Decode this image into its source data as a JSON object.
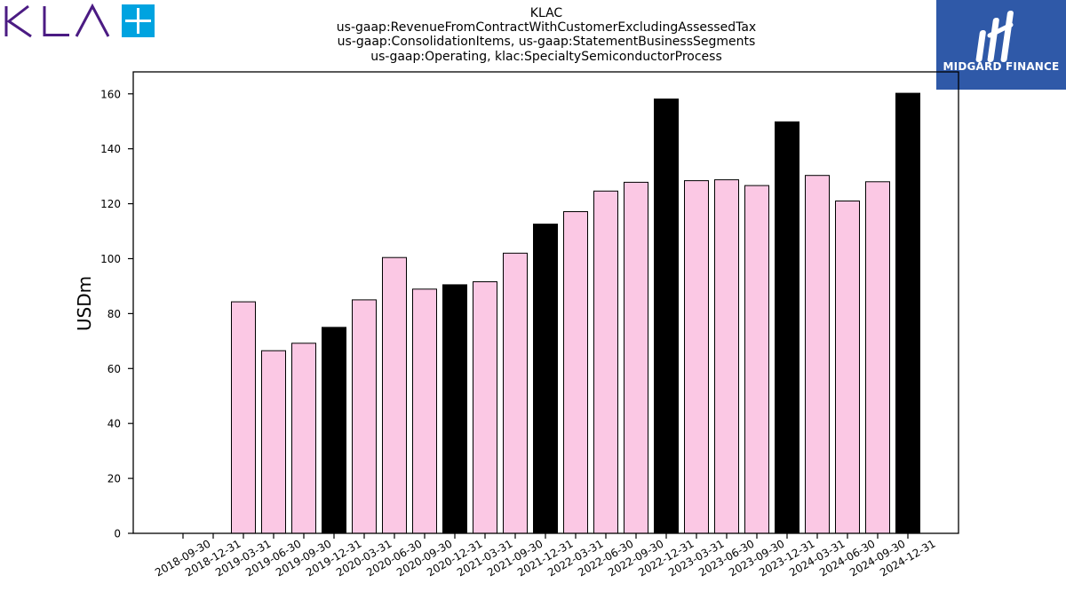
{
  "logo": {
    "text": "KLA+",
    "color": "#4b1b83",
    "accent": "#00a3e0"
  },
  "brand": {
    "name": "MIDGARD FINANCE",
    "background": "#2f59a8"
  },
  "chart_data": {
    "type": "bar",
    "title_lines": [
      "KLAC",
      "us-gaap:RevenueFromContractWithCustomerExcludingAssessedTax",
      "us-gaap:ConsolidationItems, us-gaap:StatementBusinessSegments",
      "us-gaap:Operating, klac:SpecialtySemiconductorProcess"
    ],
    "xlabel": "",
    "ylabel": "USDm",
    "ylim": [
      0,
      168
    ],
    "yticks": [
      0,
      20,
      40,
      60,
      80,
      100,
      120,
      140,
      160
    ],
    "grid": false,
    "categories": [
      "2018-09-30",
      "2018-12-31",
      "2019-03-31",
      "2019-06-30",
      "2019-09-30",
      "2019-12-31",
      "2020-03-31",
      "2020-06-30",
      "2020-09-30",
      "2020-12-31",
      "2021-03-31",
      "2021-09-30",
      "2021-12-31",
      "2022-03-31",
      "2022-06-30",
      "2022-09-30",
      "2022-12-31",
      "2023-03-31",
      "2023-06-30",
      "2023-09-30",
      "2023-12-31",
      "2024-03-31",
      "2024-06-30",
      "2024-09-30",
      "2024-12-31"
    ],
    "values": [
      null,
      null,
      84.3,
      66.5,
      69.2,
      75.0,
      85.0,
      100.4,
      88.9,
      90.5,
      91.6,
      102.0,
      112.6,
      117.1,
      124.6,
      127.8,
      158.1,
      128.4,
      128.7,
      126.6,
      149.8,
      130.3,
      121.0,
      128.0,
      160.2
    ],
    "bar_colors": [
      "#fbc8e4",
      "#fbc8e4",
      "#fbc8e4",
      "#fbc8e4",
      "#fbc8e4",
      "#000000",
      "#fbc8e4",
      "#fbc8e4",
      "#fbc8e4",
      "#000000",
      "#fbc8e4",
      "#fbc8e4",
      "#000000",
      "#fbc8e4",
      "#fbc8e4",
      "#fbc8e4",
      "#000000",
      "#fbc8e4",
      "#fbc8e4",
      "#fbc8e4",
      "#000000",
      "#fbc8e4",
      "#fbc8e4",
      "#fbc8e4",
      "#000000"
    ]
  }
}
